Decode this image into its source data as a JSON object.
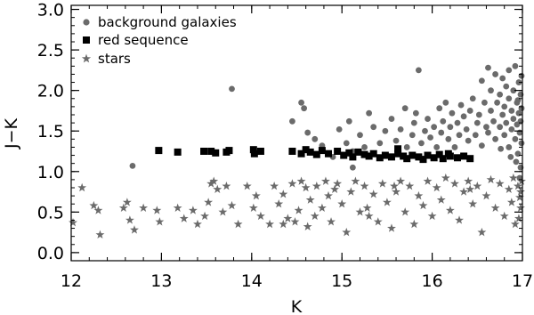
{
  "colors": {
    "galaxies": "#6b6b6b",
    "red_sequence": "#000000",
    "stars": "#6b6b6b",
    "axes": "#000000"
  },
  "chart_data": {
    "type": "scatter",
    "title": "",
    "xlabel": "K",
    "ylabel": "J−K",
    "xlim": [
      12,
      17
    ],
    "ylim": [
      -0.1,
      3.05
    ],
    "xticks": [
      "12",
      "13",
      "14",
      "15",
      "16",
      "17"
    ],
    "xtick_values": [
      12,
      13,
      14,
      15,
      16,
      17
    ],
    "yticks": [
      "0.0",
      "0.5",
      "1.0",
      "1.5",
      "2.0",
      "2.5",
      "3.0"
    ],
    "ytick_values": [
      0.0,
      0.5,
      1.0,
      1.5,
      2.0,
      2.5,
      3.0
    ],
    "grid": false,
    "legend_position": "top-left",
    "series": [
      {
        "name": "background galaxies",
        "marker": "circle",
        "points": [
          [
            12.68,
            1.07
          ],
          [
            13.78,
            2.02
          ],
          [
            14.45,
            1.62
          ],
          [
            14.55,
            1.85
          ],
          [
            14.58,
            1.78
          ],
          [
            14.62,
            1.48
          ],
          [
            14.7,
            1.4
          ],
          [
            14.78,
            1.32
          ],
          [
            14.9,
            1.18
          ],
          [
            14.97,
            1.52
          ],
          [
            15.05,
            1.35
          ],
          [
            15.08,
            1.62
          ],
          [
            15.12,
            1.05
          ],
          [
            15.12,
            1.25
          ],
          [
            15.2,
            1.45
          ],
          [
            15.25,
            1.3
          ],
          [
            15.3,
            1.72
          ],
          [
            15.35,
            1.55
          ],
          [
            15.42,
            1.35
          ],
          [
            15.48,
            1.5
          ],
          [
            15.55,
            1.65
          ],
          [
            15.6,
            1.38
          ],
          [
            15.65,
            1.52
          ],
          [
            15.7,
            1.78
          ],
          [
            15.72,
            1.3
          ],
          [
            15.78,
            1.45
          ],
          [
            15.8,
            1.6
          ],
          [
            15.82,
            1.72
          ],
          [
            15.85,
            2.25
          ],
          [
            15.88,
            1.35
          ],
          [
            15.92,
            1.5
          ],
          [
            15.95,
            1.65
          ],
          [
            15.98,
            1.42
          ],
          [
            16.02,
            1.55
          ],
          [
            16.05,
            1.3
          ],
          [
            16.08,
            1.78
          ],
          [
            16.1,
            1.48
          ],
          [
            16.12,
            1.62
          ],
          [
            16.15,
            1.85
          ],
          [
            16.18,
            1.4
          ],
          [
            16.2,
            1.55
          ],
          [
            16.22,
            1.72
          ],
          [
            16.25,
            1.3
          ],
          [
            16.28,
            1.6
          ],
          [
            16.3,
            1.45
          ],
          [
            16.32,
            1.82
          ],
          [
            16.35,
            1.68
          ],
          [
            16.38,
            1.52
          ],
          [
            16.4,
            1.38
          ],
          [
            16.42,
            1.75
          ],
          [
            16.45,
            1.9
          ],
          [
            16.48,
            1.45
          ],
          [
            16.5,
            1.6
          ],
          [
            16.52,
            1.7
          ],
          [
            16.55,
            2.12
          ],
          [
            16.55,
            1.32
          ],
          [
            16.58,
            1.85
          ],
          [
            16.6,
            1.55
          ],
          [
            16.62,
            2.28
          ],
          [
            16.62,
            1.48
          ],
          [
            16.65,
            1.75
          ],
          [
            16.65,
            2.0
          ],
          [
            16.68,
            1.62
          ],
          [
            16.7,
            1.4
          ],
          [
            16.7,
            2.2
          ],
          [
            16.72,
            1.85
          ],
          [
            16.75,
            1.55
          ],
          [
            16.75,
            1.95
          ],
          [
            16.78,
            1.7
          ],
          [
            16.78,
            2.15
          ],
          [
            16.8,
            1.45
          ],
          [
            16.8,
            1.8
          ],
          [
            16.82,
            2.05
          ],
          [
            16.82,
            1.6
          ],
          [
            16.85,
            1.3
          ],
          [
            16.85,
            1.9
          ],
          [
            16.85,
            2.25
          ],
          [
            16.88,
            1.75
          ],
          [
            16.88,
            1.52
          ],
          [
            16.9,
            2.0
          ],
          [
            16.9,
            1.65
          ],
          [
            16.92,
            1.4
          ],
          [
            16.92,
            2.3
          ],
          [
            16.94,
            1.85
          ],
          [
            16.94,
            1.58
          ],
          [
            16.95,
            1.22
          ],
          [
            16.96,
            2.1
          ],
          [
            16.96,
            1.72
          ],
          [
            16.97,
            1.48
          ],
          [
            16.98,
            1.95
          ],
          [
            16.98,
            1.62
          ],
          [
            16.99,
            1.78
          ],
          [
            16.99,
            1.35
          ],
          [
            16.98,
            1.05
          ],
          [
            16.97,
            0.92
          ],
          [
            16.99,
            2.18
          ],
          [
            16.95,
            1.88
          ],
          [
            16.93,
            1.12
          ],
          [
            16.87,
            1.18
          ],
          [
            16.76,
            1.28
          ]
        ]
      },
      {
        "name": "red sequence",
        "marker": "square",
        "points": [
          [
            12.97,
            1.26
          ],
          [
            13.18,
            1.24
          ],
          [
            13.47,
            1.25
          ],
          [
            13.55,
            1.25
          ],
          [
            13.6,
            1.23
          ],
          [
            13.72,
            1.24
          ],
          [
            13.75,
            1.26
          ],
          [
            14.02,
            1.27
          ],
          [
            14.03,
            1.22
          ],
          [
            14.1,
            1.25
          ],
          [
            14.45,
            1.25
          ],
          [
            14.55,
            1.22
          ],
          [
            14.6,
            1.27
          ],
          [
            14.65,
            1.24
          ],
          [
            14.72,
            1.21
          ],
          [
            14.78,
            1.26
          ],
          [
            14.85,
            1.22
          ],
          [
            14.95,
            1.25
          ],
          [
            15.02,
            1.2
          ],
          [
            15.08,
            1.23
          ],
          [
            15.12,
            1.18
          ],
          [
            15.18,
            1.24
          ],
          [
            15.25,
            1.21
          ],
          [
            15.3,
            1.19
          ],
          [
            15.35,
            1.22
          ],
          [
            15.42,
            1.17
          ],
          [
            15.48,
            1.2
          ],
          [
            15.55,
            1.18
          ],
          [
            15.62,
            1.22
          ],
          [
            15.68,
            1.19
          ],
          [
            15.72,
            1.16
          ],
          [
            15.78,
            1.2
          ],
          [
            15.85,
            1.18
          ],
          [
            15.9,
            1.15
          ],
          [
            15.95,
            1.2
          ],
          [
            16.02,
            1.17
          ],
          [
            16.08,
            1.21
          ],
          [
            16.12,
            1.16
          ],
          [
            16.2,
            1.19
          ],
          [
            16.28,
            1.17
          ],
          [
            16.35,
            1.19
          ],
          [
            16.42,
            1.16
          ],
          [
            15.62,
            1.28
          ],
          [
            16.18,
            1.22
          ]
        ]
      },
      {
        "name": "stars",
        "marker": "star",
        "points": [
          [
            12.02,
            0.37
          ],
          [
            12.12,
            0.8
          ],
          [
            12.25,
            0.58
          ],
          [
            12.3,
            0.52
          ],
          [
            12.32,
            0.22
          ],
          [
            12.58,
            0.55
          ],
          [
            12.62,
            0.62
          ],
          [
            12.65,
            0.4
          ],
          [
            12.7,
            0.28
          ],
          [
            12.8,
            0.55
          ],
          [
            12.95,
            0.52
          ],
          [
            12.98,
            0.38
          ],
          [
            13.18,
            0.55
          ],
          [
            13.25,
            0.42
          ],
          [
            13.35,
            0.52
          ],
          [
            13.4,
            0.35
          ],
          [
            13.48,
            0.45
          ],
          [
            13.52,
            0.62
          ],
          [
            13.55,
            0.85
          ],
          [
            13.58,
            0.88
          ],
          [
            13.62,
            0.78
          ],
          [
            13.68,
            0.5
          ],
          [
            13.72,
            0.82
          ],
          [
            13.78,
            0.58
          ],
          [
            13.85,
            0.35
          ],
          [
            13.95,
            0.82
          ],
          [
            14.02,
            0.55
          ],
          [
            14.05,
            0.7
          ],
          [
            14.1,
            0.45
          ],
          [
            14.2,
            0.35
          ],
          [
            14.25,
            0.82
          ],
          [
            14.3,
            0.6
          ],
          [
            14.35,
            0.72
          ],
          [
            14.4,
            0.42
          ],
          [
            14.45,
            0.85
          ],
          [
            14.48,
            0.38
          ],
          [
            14.52,
            0.52
          ],
          [
            14.55,
            0.88
          ],
          [
            14.6,
            0.8
          ],
          [
            14.65,
            0.65
          ],
          [
            14.7,
            0.45
          ],
          [
            14.72,
            0.82
          ],
          [
            14.78,
            0.55
          ],
          [
            14.82,
            0.88
          ],
          [
            14.85,
            0.7
          ],
          [
            14.88,
            0.38
          ],
          [
            14.95,
            0.85
          ],
          [
            15.0,
            0.6
          ],
          [
            15.05,
            0.25
          ],
          [
            15.1,
            0.75
          ],
          [
            15.15,
            0.88
          ],
          [
            15.2,
            0.5
          ],
          [
            15.25,
            0.82
          ],
          [
            15.3,
            0.45
          ],
          [
            15.35,
            0.72
          ],
          [
            15.4,
            0.38
          ],
          [
            15.45,
            0.85
          ],
          [
            15.5,
            0.62
          ],
          [
            15.55,
            0.3
          ],
          [
            15.6,
            0.75
          ],
          [
            15.65,
            0.88
          ],
          [
            15.7,
            0.5
          ],
          [
            15.75,
            0.82
          ],
          [
            15.8,
            0.35
          ],
          [
            15.85,
            0.7
          ],
          [
            15.9,
            0.58
          ],
          [
            15.95,
            0.88
          ],
          [
            16.0,
            0.45
          ],
          [
            16.05,
            0.8
          ],
          [
            16.1,
            0.65
          ],
          [
            16.15,
            0.92
          ],
          [
            16.2,
            0.52
          ],
          [
            16.25,
            0.85
          ],
          [
            16.3,
            0.4
          ],
          [
            16.35,
            0.75
          ],
          [
            16.4,
            0.88
          ],
          [
            16.45,
            0.6
          ],
          [
            16.5,
            0.82
          ],
          [
            16.55,
            0.25
          ],
          [
            16.6,
            0.7
          ],
          [
            16.65,
            0.9
          ],
          [
            16.7,
            0.55
          ],
          [
            16.75,
            0.85
          ],
          [
            16.8,
            0.45
          ],
          [
            16.85,
            0.78
          ],
          [
            16.88,
            0.62
          ],
          [
            16.9,
            0.92
          ],
          [
            16.92,
            0.35
          ],
          [
            16.95,
            0.82
          ],
          [
            16.97,
            0.68
          ],
          [
            16.98,
            0.55
          ],
          [
            16.99,
            0.88
          ],
          [
            16.96,
            0.42
          ],
          [
            16.98,
            0.75
          ],
          [
            14.92,
            0.78
          ],
          [
            15.58,
            0.82
          ],
          [
            16.42,
            0.78
          ],
          [
            14.62,
            0.32
          ],
          [
            14.35,
            0.35
          ],
          [
            15.28,
            0.55
          ]
        ]
      }
    ]
  }
}
